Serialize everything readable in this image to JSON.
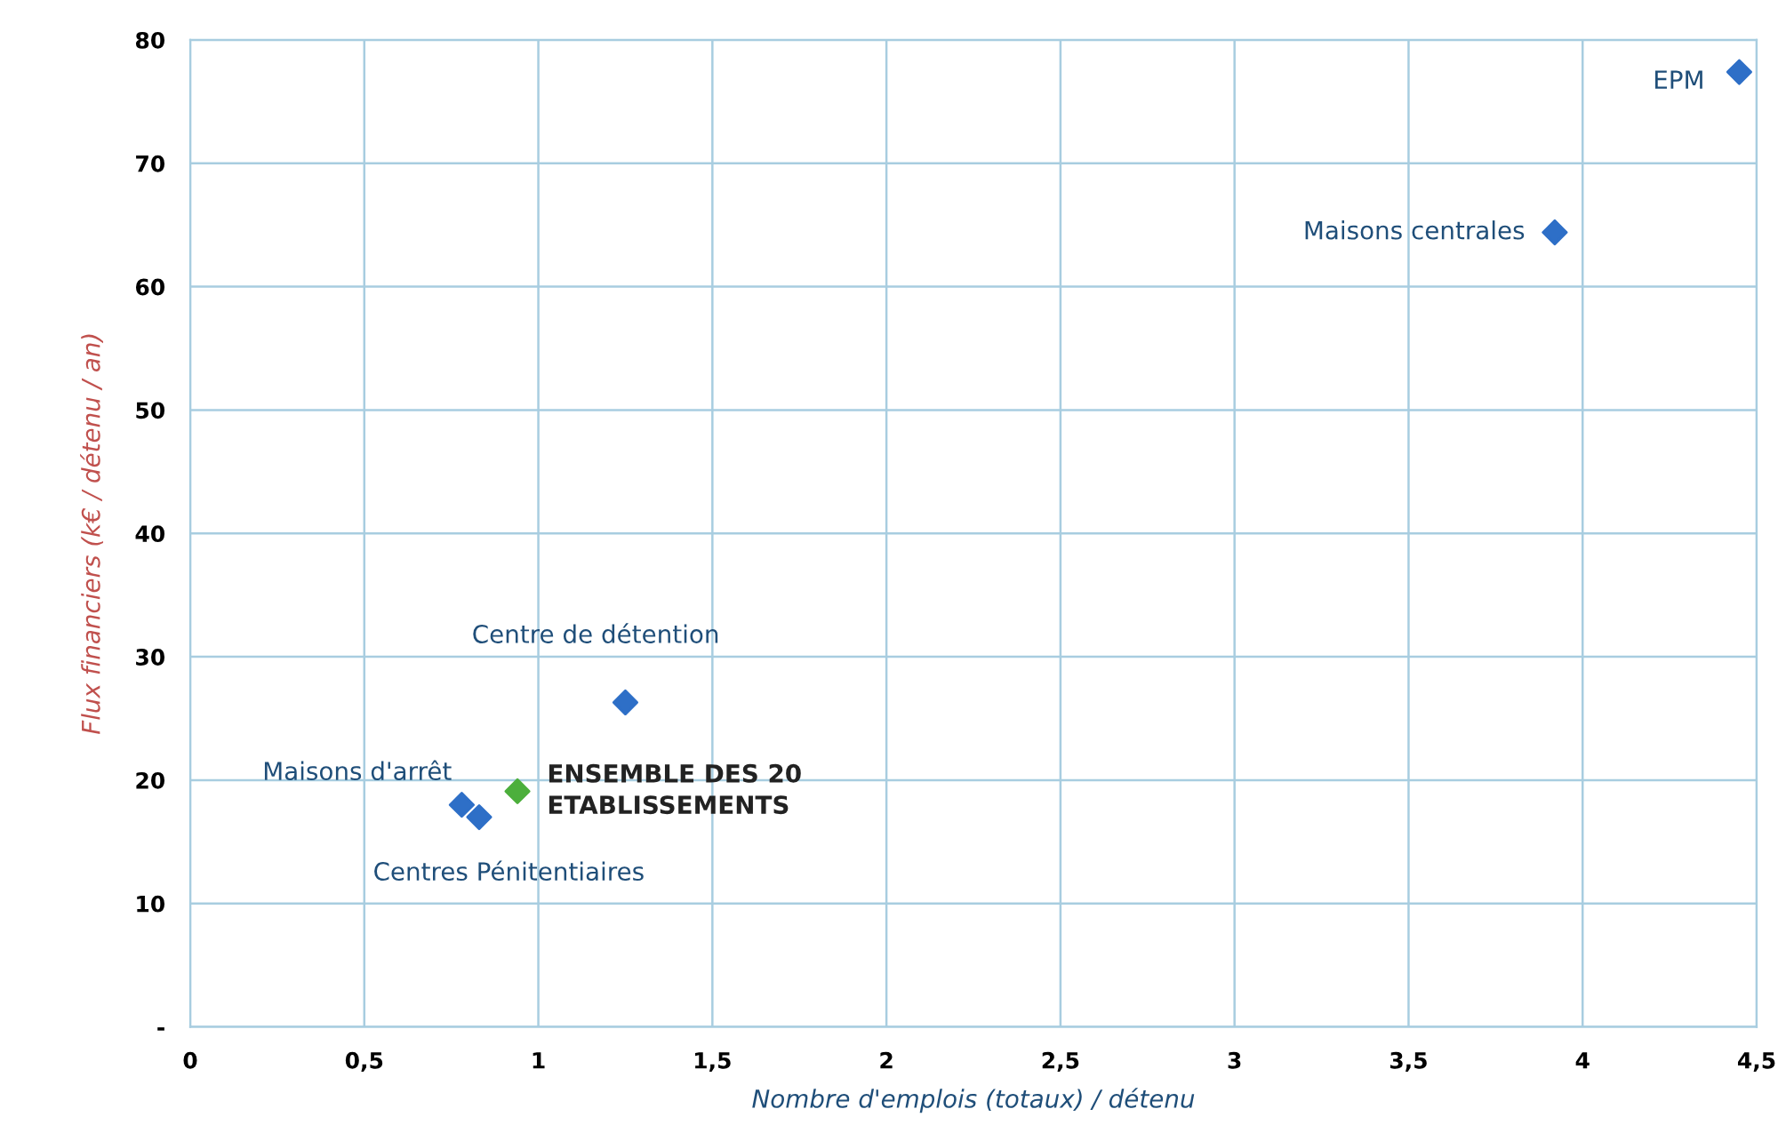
{
  "chart_data": {
    "type": "scatter",
    "xlabel": "Nombre d'emplois (totaux) / détenu",
    "ylabel": "Flux financiers (k€ / détenu / an)",
    "series": [
      {
        "name": "EPM",
        "color": "#2e6fc7",
        "x": [
          4.45
        ],
        "values": [
          77.4
        ]
      },
      {
        "name": "Maisons centrales",
        "color": "#2e6fc7",
        "x": [
          3.92
        ],
        "values": [
          64.4
        ]
      },
      {
        "name": "Centre de détention",
        "color": "#2e6fc7",
        "x": [
          1.25
        ],
        "values": [
          26.3
        ]
      },
      {
        "name": "Maisons d'arrêt",
        "color": "#2e6fc7",
        "x": [
          0.78
        ],
        "values": [
          18.0
        ]
      },
      {
        "name": "Centres Pénitentiaires",
        "color": "#2e6fc7",
        "x": [
          0.83
        ],
        "values": [
          17.0
        ]
      },
      {
        "name": "ENSEMBLE DES 20\nETABLISSEMENTS",
        "color": "#4caf3c",
        "x": [
          0.94
        ],
        "values": [
          19.1
        ]
      }
    ],
    "xlim": [
      0,
      4.5
    ],
    "xticks": [
      0,
      {
        "value": 0.5,
        "label": "0,5"
      },
      1,
      {
        "value": 1.5,
        "label": "1,5"
      },
      2,
      {
        "value": 2.5,
        "label": "2,5"
      },
      3,
      {
        "value": 3.5,
        "label": "3,5"
      },
      4,
      {
        "value": 4.5,
        "label": "4,5"
      }
    ],
    "ylim": [
      0,
      80
    ],
    "yticks": [
      {
        "value": 0,
        "label": "-"
      },
      10,
      20,
      30,
      40,
      50,
      60,
      70,
      80
    ],
    "grid": true,
    "marker": "diamond",
    "legend": false
  }
}
